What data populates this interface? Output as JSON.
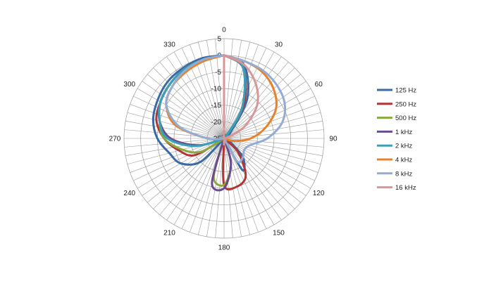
{
  "chart_data": {
    "type": "line",
    "subtype": "polar",
    "title": "",
    "angle_ticks": [
      0,
      30,
      60,
      90,
      120,
      150,
      180,
      210,
      240,
      270,
      300,
      330
    ],
    "angle_tick_labels": [
      "0",
      "30",
      "60",
      "90",
      "120",
      "150",
      "180",
      "210",
      "240",
      "270",
      "300",
      "330"
    ],
    "angle_grid_step": 5,
    "radial_range": [
      -25,
      5
    ],
    "radial_ticks": [
      5,
      0,
      -5,
      -10,
      -15,
      -20,
      -25
    ],
    "radial_tick_labels": [
      "5",
      "0",
      "-5",
      "-10",
      "-15",
      "-20",
      "-25"
    ],
    "grid": true,
    "legend_position": "right",
    "theta": [
      0,
      15,
      30,
      45,
      60,
      75,
      90,
      105,
      120,
      135,
      150,
      165,
      180,
      195,
      210,
      225,
      240,
      255,
      270,
      285,
      300,
      315,
      330,
      345,
      360
    ],
    "series": [
      {
        "name": "125 Hz",
        "color": "#3a6aa6",
        "values": [
          0,
          -2,
          -11,
          -22,
          -25,
          -25,
          -25,
          -25,
          -23,
          -17,
          -14,
          -25,
          -25,
          -25,
          -25,
          -15,
          -10,
          -8,
          -5,
          -3,
          -2,
          -1,
          -0.5,
          0,
          0
        ]
      },
      {
        "name": "250 Hz",
        "color": "#b03535",
        "values": [
          0,
          -3,
          -13,
          -24,
          -25,
          -25,
          -25,
          -25,
          -25,
          -19,
          -12,
          -10,
          -11,
          -25,
          -25,
          -25,
          -15,
          -11,
          -7,
          -4,
          -3,
          -2,
          -1,
          -0.5,
          0
        ]
      },
      {
        "name": "500 Hz",
        "color": "#8aa83e",
        "values": [
          0,
          -3,
          -14,
          -24,
          -25,
          -25,
          -25,
          -25,
          -25,
          -25,
          -25,
          -17,
          -11,
          -13,
          -25,
          -25,
          -17,
          -12,
          -7,
          -5,
          -3,
          -2,
          -1,
          -0.5,
          0
        ]
      },
      {
        "name": "1 kHz",
        "color": "#6b4a8e",
        "values": [
          0,
          -3,
          -14,
          -24,
          -25,
          -25,
          -25,
          -25,
          -25,
          -25,
          -25,
          -17,
          -10,
          -11,
          -25,
          -25,
          -25,
          -17,
          -9,
          -5,
          -3,
          -2,
          -1,
          -0.5,
          0
        ]
      },
      {
        "name": "2 kHz",
        "color": "#3aa0b8",
        "values": [
          0,
          -3,
          -14,
          -24,
          -25,
          -25,
          -25,
          -25,
          -25,
          -25,
          -25,
          -25,
          -25,
          -25,
          -25,
          -25,
          -25,
          -16,
          -8,
          -5,
          -3,
          -2,
          -1,
          -0.5,
          0
        ]
      },
      {
        "name": "4 kHz",
        "color": "#e8822a",
        "values": [
          0,
          -1,
          -2,
          -4,
          -7,
          -12,
          -17,
          -22,
          -25,
          -25,
          -25,
          -25,
          -25,
          -25,
          -25,
          -25,
          -25,
          -25,
          -20,
          -10,
          -5,
          -3,
          -2,
          -1,
          0
        ]
      },
      {
        "name": "8 kHz",
        "color": "#92acd4",
        "values": [
          0,
          -1,
          -1.5,
          -2.5,
          -4,
          -7,
          -12,
          -17,
          -18,
          -17,
          -17,
          -25,
          -25,
          -25,
          -25,
          -25,
          -25,
          -25,
          -20,
          -11,
          -5,
          -3,
          -1.5,
          -0.5,
          0
        ]
      },
      {
        "name": "16 kHz",
        "color": "#d89696",
        "values": [
          0,
          -2,
          -6,
          -11,
          -18,
          -24,
          -25,
          -25,
          -25,
          -25,
          -25,
          -25,
          -25,
          -25,
          -25,
          -25,
          -25,
          -25,
          -25,
          -25,
          -25,
          -25,
          -25,
          -25,
          0
        ]
      }
    ]
  }
}
